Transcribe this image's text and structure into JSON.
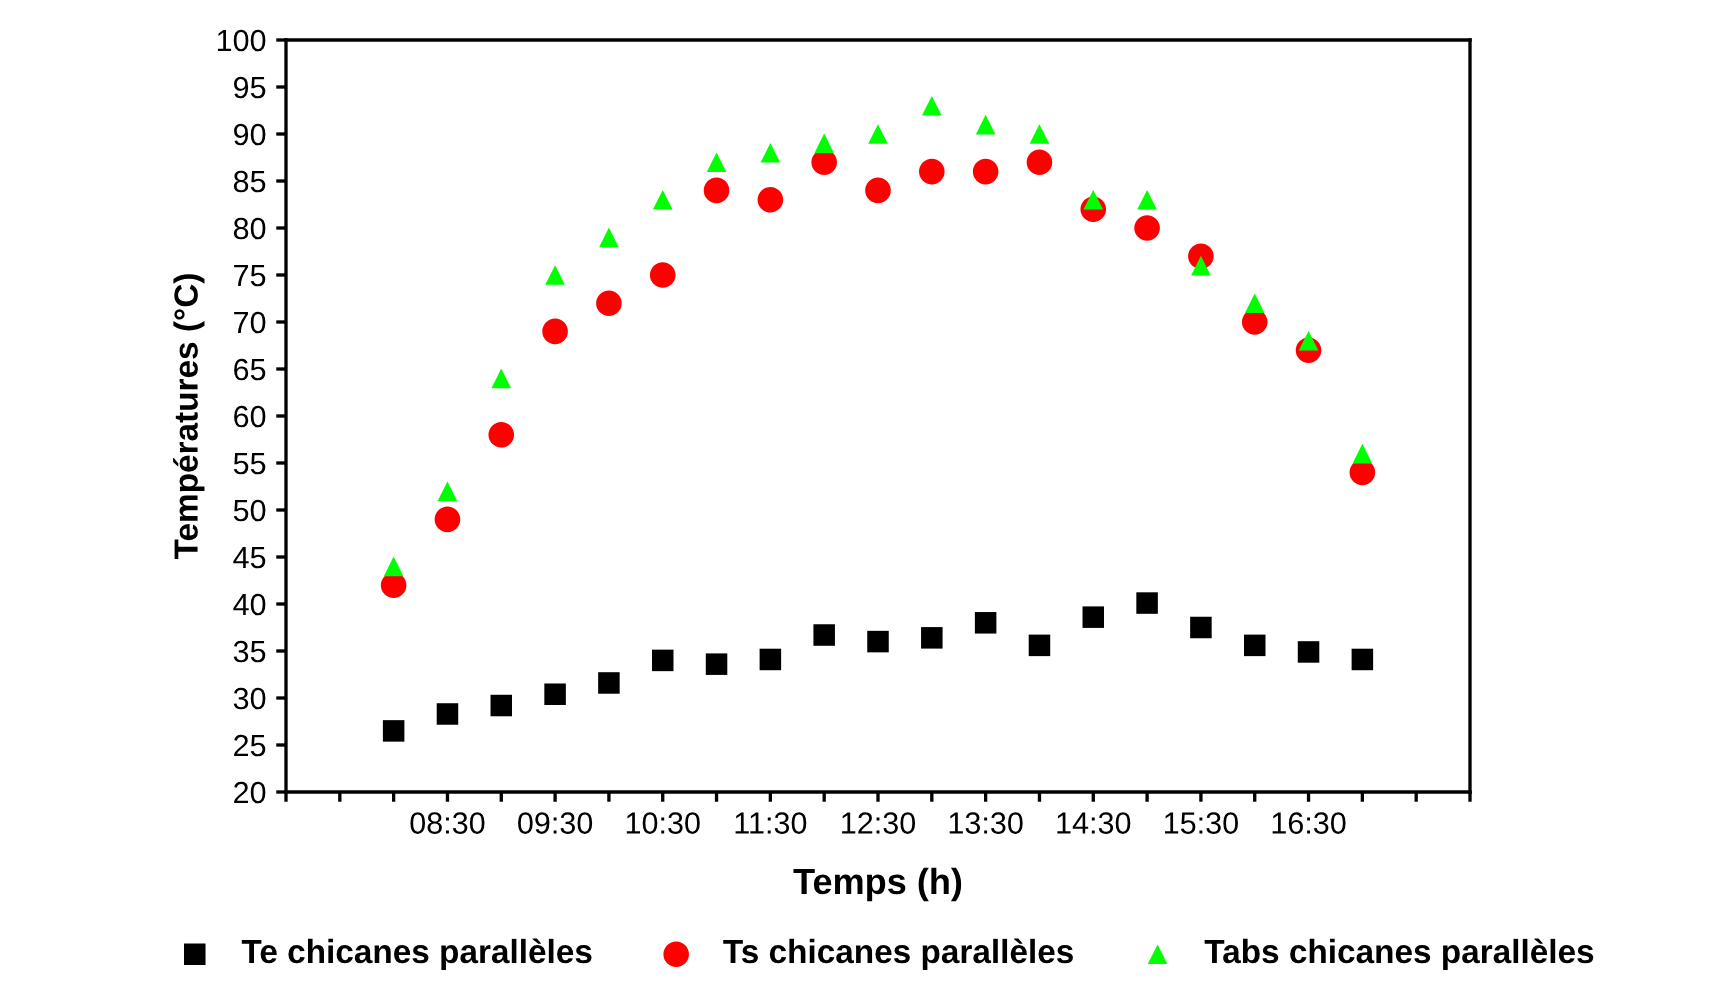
{
  "chart_data": {
    "type": "scatter",
    "xlabel": "Temps (h)",
    "ylabel": "Températures (°C)",
    "x": [
      8.0,
      8.5,
      9.0,
      9.5,
      10.0,
      10.5,
      11.0,
      11.5,
      12.0,
      12.5,
      13.0,
      13.5,
      14.0,
      14.5,
      15.0,
      15.5,
      16.0,
      16.5,
      17.0
    ],
    "series": [
      {
        "name": "Te chicanes parallèles",
        "color": "#000000",
        "marker": "square",
        "values": [
          26.5,
          28.3,
          29.2,
          30.4,
          31.6,
          34,
          33.6,
          34.1,
          36.7,
          36,
          36.4,
          38,
          35.6,
          38.6,
          40.1,
          37.5,
          35.6,
          34.9,
          34.1
        ]
      },
      {
        "name": "Ts chicanes parallèles",
        "color": "#ff0000",
        "marker": "circle",
        "values": [
          42,
          49,
          58,
          69,
          72,
          75,
          84,
          83,
          87,
          84,
          86,
          86,
          87,
          82,
          80,
          77,
          70,
          67,
          54
        ]
      },
      {
        "name": "Tabs chicanes parallèles",
        "color": "#00ff00",
        "marker": "triangle",
        "values": [
          44,
          52,
          64,
          75,
          79,
          83,
          87,
          88,
          89,
          90,
          93,
          91,
          90,
          83,
          83,
          76,
          72,
          68,
          56
        ]
      }
    ],
    "xlim": [
      7,
      18
    ],
    "xticks": [
      {
        "value": 7,
        "label": null
      },
      {
        "value": 7.5,
        "label": null
      },
      {
        "value": 8,
        "label": null
      },
      {
        "value": 8.5,
        "label": "08:30"
      },
      {
        "value": 9,
        "label": null
      },
      {
        "value": 9.5,
        "label": "09:30"
      },
      {
        "value": 10,
        "label": null
      },
      {
        "value": 10.5,
        "label": "10:30"
      },
      {
        "value": 11,
        "label": null
      },
      {
        "value": 11.5,
        "label": "11:30"
      },
      {
        "value": 12,
        "label": null
      },
      {
        "value": 12.5,
        "label": "12:30"
      },
      {
        "value": 13,
        "label": null
      },
      {
        "value": 13.5,
        "label": "13:30"
      },
      {
        "value": 14,
        "label": null
      },
      {
        "value": 14.5,
        "label": "14:30"
      },
      {
        "value": 15,
        "label": null
      },
      {
        "value": 15.5,
        "label": "15:30"
      },
      {
        "value": 16,
        "label": null
      },
      {
        "value": 16.5,
        "label": "16:30"
      },
      {
        "value": 17,
        "label": null
      },
      {
        "value": 17.5,
        "label": null
      },
      {
        "value": 18,
        "label": null
      }
    ],
    "ylim": [
      20,
      100
    ],
    "yticks": [
      20,
      25,
      30,
      35,
      40,
      45,
      50,
      55,
      60,
      65,
      70,
      75,
      80,
      85,
      90,
      95,
      100
    ],
    "grid": false,
    "legend": "bottom"
  }
}
